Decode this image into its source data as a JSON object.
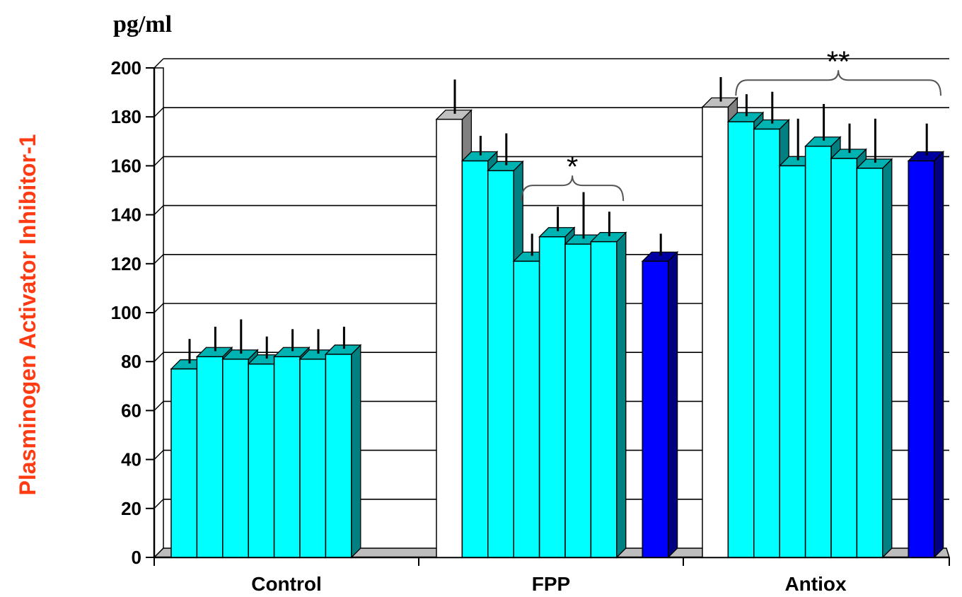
{
  "chart_data": {
    "type": "bar",
    "unit_label": "pg/ml",
    "ylabel": "Plasminogen Activator Inhibitor-1",
    "xlabel": "",
    "ylim": [
      0,
      200
    ],
    "yticks": [
      "0",
      "20",
      "40",
      "60",
      "80",
      "100",
      "120",
      "140",
      "160",
      "180",
      "200"
    ],
    "grid": true,
    "categories": [
      "Control",
      "FPP",
      "Antiox"
    ],
    "groups": [
      {
        "category": "Control",
        "bars": [
          {
            "value": 77,
            "error": 10,
            "color": "#00ffff"
          },
          {
            "value": 82,
            "error": 10,
            "color": "#00ffff"
          },
          {
            "value": 81,
            "error": 14,
            "color": "#00ffff"
          },
          {
            "value": 79,
            "error": 9,
            "color": "#00ffff"
          },
          {
            "value": 82,
            "error": 9,
            "color": "#00ffff"
          },
          {
            "value": 81,
            "error": 10,
            "color": "#00ffff"
          },
          {
            "value": 83,
            "error": 9,
            "color": "#00ffff"
          }
        ]
      },
      {
        "category": "FPP",
        "bars": [
          {
            "value": 179,
            "error": 14,
            "color": "#ffffff"
          },
          {
            "value": 162,
            "error": 8,
            "color": "#00ffff"
          },
          {
            "value": 158,
            "error": 13,
            "color": "#00ffff"
          },
          {
            "value": 121,
            "error": 9,
            "color": "#00ffff"
          },
          {
            "value": 131,
            "error": 10,
            "color": "#00ffff"
          },
          {
            "value": 128,
            "error": 19,
            "color": "#00ffff"
          },
          {
            "value": 129,
            "error": 10,
            "color": "#00ffff"
          },
          {
            "value": 121,
            "error": 9,
            "color": "#0000ff"
          }
        ]
      },
      {
        "category": "Antiox",
        "bars": [
          {
            "value": 184,
            "error": 10,
            "color": "#ffffff"
          },
          {
            "value": 178,
            "error": 9,
            "color": "#00ffff"
          },
          {
            "value": 175,
            "error": 13,
            "color": "#00ffff"
          },
          {
            "value": 160,
            "error": 17,
            "color": "#00ffff"
          },
          {
            "value": 168,
            "error": 15,
            "color": "#00ffff"
          },
          {
            "value": 163,
            "error": 12,
            "color": "#00ffff"
          },
          {
            "value": 159,
            "error": 18,
            "color": "#00ffff"
          },
          {
            "value": 162,
            "error": 13,
            "color": "#0000ff"
          }
        ]
      }
    ],
    "annotations": [
      {
        "text": "*",
        "category": "FPP",
        "from_bar": 4,
        "to_bar": 7,
        "value": 152
      },
      {
        "text": "**",
        "category": "Antiox",
        "from_bar": 2,
        "to_bar": 9,
        "value": 195
      }
    ]
  }
}
